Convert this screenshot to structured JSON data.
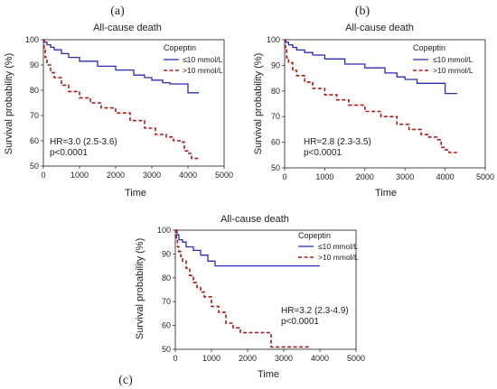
{
  "chart_data": [
    {
      "type": "line",
      "panel_label": "(a)",
      "title": "All-cause death",
      "xlabel": "Time",
      "ylabel": "Survival probability (%)",
      "xlim": [
        0,
        5000
      ],
      "ylim": [
        50,
        100
      ],
      "xticks": [
        0,
        1000,
        2000,
        3000,
        4000,
        5000
      ],
      "yticks": [
        50,
        60,
        70,
        80,
        90,
        100
      ],
      "legend": {
        "title": "Copeptin",
        "placement": "top-right"
      },
      "annotations": [
        "HR=3.0 (2.5-3.6)",
        "p<0.0001"
      ],
      "series": [
        {
          "name": "≤10 mmol/L",
          "color": "#2b2bb5",
          "style": "solid",
          "x": [
            0,
            30,
            100,
            200,
            300,
            500,
            700,
            1000,
            1500,
            2000,
            2500,
            2800,
            3000,
            3300,
            3500,
            3700,
            3900,
            4000,
            4300
          ],
          "y": [
            100,
            99,
            98,
            97,
            96,
            94.5,
            93,
            91.5,
            89.5,
            88,
            86,
            85,
            84,
            83,
            82.5,
            82.5,
            82.5,
            79,
            79
          ]
        },
        {
          "name": ">10 mmol/L",
          "color": "#b01818",
          "style": "dashed",
          "x": [
            0,
            20,
            50,
            100,
            200,
            300,
            500,
            700,
            1000,
            1300,
            1600,
            2000,
            2400,
            2800,
            3100,
            3400,
            3600,
            3800,
            3900,
            4000,
            4100,
            4300
          ],
          "y": [
            100,
            96,
            93,
            90,
            87,
            85,
            82,
            79.5,
            77,
            75,
            73,
            71,
            68,
            65,
            62.5,
            61.5,
            60,
            59.5,
            56,
            55,
            53,
            53
          ]
        }
      ]
    },
    {
      "type": "line",
      "panel_label": "(b)",
      "title": "All-cause death",
      "xlabel": "Time",
      "ylabel": "Survival probability (%)",
      "xlim": [
        0,
        5000
      ],
      "ylim": [
        50,
        100
      ],
      "xticks": [
        0,
        1000,
        2000,
        3000,
        4000,
        5000
      ],
      "yticks": [
        50,
        60,
        70,
        80,
        90,
        100
      ],
      "legend": {
        "title": "Copeptin",
        "placement": "top-right"
      },
      "annotations": [
        "HR=2.8 (2.3-3.5)",
        "p<0.0001"
      ],
      "series": [
        {
          "name": "≤10 mmol/L",
          "color": "#2b2bb5",
          "style": "solid",
          "x": [
            0,
            30,
            100,
            200,
            300,
            500,
            700,
            1000,
            1500,
            2000,
            2500,
            2800,
            3000,
            3300,
            3500,
            3700,
            3900,
            4000,
            4300
          ],
          "y": [
            100,
            99,
            98,
            97,
            96,
            95,
            94,
            92.5,
            90.5,
            89,
            87,
            85.5,
            84.5,
            83,
            83,
            83,
            83,
            79,
            79
          ]
        },
        {
          "name": ">10 mmol/L",
          "color": "#b01818",
          "style": "dashed",
          "x": [
            0,
            20,
            50,
            100,
            200,
            300,
            500,
            700,
            1000,
            1300,
            1600,
            2000,
            2400,
            2800,
            3100,
            3400,
            3600,
            3800,
            3900,
            4000,
            4100,
            4300
          ],
          "y": [
            100,
            96,
            93,
            91,
            88,
            86,
            83.5,
            81,
            78.5,
            76.5,
            74.5,
            72,
            70,
            67,
            65,
            63,
            62,
            61,
            58,
            57,
            56,
            56
          ]
        }
      ]
    },
    {
      "type": "line",
      "panel_label": "(c)",
      "title": "All-cause death",
      "xlabel": "Time",
      "ylabel": "Survival probability (%)",
      "xlim": [
        0,
        5000
      ],
      "ylim": [
        50,
        100
      ],
      "xticks": [
        0,
        1000,
        2000,
        3000,
        4000,
        5000
      ],
      "yticks": [
        50,
        60,
        70,
        80,
        90,
        100
      ],
      "legend": {
        "title": "Copeptin",
        "placement": "top-right"
      },
      "annotations": [
        "HR=3.2 (2.3-4.9)",
        "p<0.0001"
      ],
      "series": [
        {
          "name": "≤10 mmol/L",
          "color": "#2b2bb5",
          "style": "solid",
          "x": [
            0,
            50,
            100,
            200,
            300,
            500,
            700,
            900,
            1100,
            1500,
            2000,
            2500,
            3000,
            3500,
            4000
          ],
          "y": [
            100,
            98,
            96,
            95,
            93,
            91.5,
            89.5,
            87,
            85,
            85,
            85,
            85,
            85,
            85,
            85
          ]
        },
        {
          "name": ">10 mmol/L",
          "color": "#b01818",
          "style": "dashed",
          "x": [
            0,
            30,
            60,
            100,
            150,
            200,
            300,
            400,
            500,
            600,
            700,
            800,
            1000,
            1200,
            1400,
            1600,
            1800,
            2000,
            2300,
            2600,
            2650,
            3000,
            3500,
            3700
          ],
          "y": [
            100,
            96,
            93,
            91,
            89,
            87,
            84,
            81,
            78,
            76,
            74,
            72,
            68,
            65.5,
            61,
            59,
            57,
            57,
            57,
            57,
            51,
            51,
            51,
            51
          ]
        }
      ]
    }
  ]
}
